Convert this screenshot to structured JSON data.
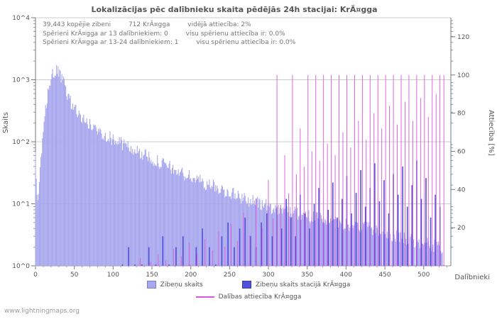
{
  "page": {
    "title": "Lokalizācijas pēc dalībnieku skaita pēdējās 24h stacijai: KrÃ¤gga",
    "watermark": "www.lightningmaps.org"
  },
  "annotations": {
    "line1": [
      "39,443 kopējie zibeni",
      "712 KrÃ¤gga",
      "vidējā attiecība: 2%"
    ],
    "line2": [
      "Spērieni KrÃ¤gga ar 13 dalībniekiem: 0",
      "visu spērienu attiecība ir: 0.0%"
    ],
    "line3": [
      "Spērieni KrÃ¤gga ar 13-24 dalībniekiem: 1",
      "visu spērienu attiecība ir: 0.0%"
    ]
  },
  "axes": {
    "left": {
      "label": "Skaits",
      "ticks": [
        "10^4",
        "10^3",
        "10^2",
        "10^1",
        "10^0"
      ]
    },
    "right": {
      "label": "Attiecība [%]",
      "ticks": [
        120,
        100,
        80,
        60,
        40,
        20
      ]
    },
    "x": {
      "label": "Dalībnieki",
      "ticks": [
        0,
        50,
        100,
        150,
        200,
        250,
        300,
        350,
        400,
        450,
        500
      ]
    }
  },
  "legend": {
    "items": [
      {
        "label": "Zibeņu skaits",
        "color": "#a8a8ee",
        "marker": "box"
      },
      {
        "label": "Zibeņu skaits stacijā KrÃ¤gga",
        "color": "#5050d8",
        "marker": "box"
      },
      {
        "label": "Dalības attiecība KrÃ¤gga",
        "color": "#dd55dd",
        "marker": "line"
      }
    ]
  },
  "chart_data": {
    "type": "bar",
    "title": "Lokalizācijas pēc dalībnieku skaita pēdējās 24h stacijai: KrÃ¤gga",
    "xlabel": "Dalībnieki",
    "ylabel_left": "Skaits",
    "ylabel_right": "Attiecība [%]",
    "x_max": 535,
    "left_scale": "log10",
    "left_range": [
      1,
      10000
    ],
    "right_max": 130,
    "right_range": [
      0,
      130
    ],
    "grid": "horizontal-decades",
    "legend_position": "bottom",
    "stats": {
      "total_strikes": "39,443",
      "station_strikes": "712",
      "average_ratio_pct": 2
    },
    "series": [
      {
        "name": "Zibeņu skaits",
        "type": "bar",
        "axis": "left",
        "color": "#a8a8ee",
        "x_end": 524,
        "profile": [
          [
            0,
            70
          ],
          [
            1,
            20
          ],
          [
            3,
            10
          ],
          [
            5,
            25
          ],
          [
            7,
            45
          ],
          [
            9,
            90
          ],
          [
            11,
            180
          ],
          [
            13,
            320
          ],
          [
            15,
            520
          ],
          [
            17,
            750
          ],
          [
            19,
            950
          ],
          [
            21,
            1120
          ],
          [
            24,
            1280
          ],
          [
            27,
            1350
          ],
          [
            30,
            1280
          ],
          [
            33,
            1080
          ],
          [
            36,
            880
          ],
          [
            39,
            700
          ],
          [
            42,
            560
          ],
          [
            45,
            450
          ],
          [
            48,
            380
          ],
          [
            52,
            320
          ],
          [
            56,
            275
          ],
          [
            60,
            240
          ],
          [
            65,
            210
          ],
          [
            70,
            185
          ],
          [
            75,
            168
          ],
          [
            80,
            152
          ],
          [
            85,
            140
          ],
          [
            90,
            130
          ],
          [
            95,
            120
          ],
          [
            100,
            110
          ],
          [
            110,
            95
          ],
          [
            120,
            82
          ],
          [
            130,
            71
          ],
          [
            140,
            61
          ],
          [
            150,
            53
          ],
          [
            160,
            46
          ],
          [
            170,
            40
          ],
          [
            180,
            35
          ],
          [
            190,
            30
          ],
          [
            200,
            27
          ],
          [
            210,
            24
          ],
          [
            220,
            21
          ],
          [
            230,
            19
          ],
          [
            240,
            17
          ],
          [
            250,
            15
          ],
          [
            260,
            13.5
          ],
          [
            270,
            12
          ],
          [
            280,
            11
          ],
          [
            290,
            10
          ],
          [
            300,
            9
          ],
          [
            310,
            8.5
          ],
          [
            320,
            8
          ],
          [
            330,
            7.4
          ],
          [
            340,
            6.9
          ],
          [
            350,
            6.4
          ],
          [
            360,
            6
          ],
          [
            370,
            5.5
          ],
          [
            380,
            5.2
          ],
          [
            390,
            5
          ],
          [
            400,
            4.7
          ],
          [
            410,
            4.4
          ],
          [
            420,
            4.1
          ],
          [
            430,
            3.9
          ],
          [
            440,
            3.6
          ],
          [
            450,
            3.4
          ],
          [
            460,
            3.1
          ],
          [
            470,
            2.9
          ],
          [
            480,
            2.7
          ],
          [
            490,
            2.5
          ],
          [
            500,
            2.3
          ],
          [
            510,
            2.1
          ],
          [
            520,
            2
          ],
          [
            524,
            1.9
          ]
        ]
      },
      {
        "name": "Zibeņu skaits stacijā KrÃ¤gga",
        "type": "bar",
        "axis": "left",
        "color": "#5050d8",
        "points": [
          [
            112,
            1
          ],
          [
            120,
            2
          ],
          [
            128,
            1
          ],
          [
            137,
            1
          ],
          [
            146,
            2
          ],
          [
            155,
            1
          ],
          [
            164,
            3
          ],
          [
            172,
            1
          ],
          [
            181,
            2
          ],
          [
            190,
            3
          ],
          [
            198,
            1
          ],
          [
            207,
            2
          ],
          [
            215,
            4
          ],
          [
            224,
            2
          ],
          [
            232,
            1
          ],
          [
            240,
            3
          ],
          [
            248,
            5
          ],
          [
            256,
            2
          ],
          [
            263,
            4
          ],
          [
            270,
            6
          ],
          [
            277,
            3
          ],
          [
            284,
            2
          ],
          [
            291,
            5
          ],
          [
            298,
            7
          ],
          [
            305,
            3
          ],
          [
            311,
            9
          ],
          [
            317,
            4
          ],
          [
            323,
            12
          ],
          [
            329,
            6
          ],
          [
            335,
            3
          ],
          [
            341,
            14
          ],
          [
            347,
            7
          ],
          [
            353,
            4
          ],
          [
            359,
            10
          ],
          [
            365,
            18
          ],
          [
            371,
            5
          ],
          [
            377,
            8
          ],
          [
            383,
            22
          ],
          [
            389,
            6
          ],
          [
            395,
            12
          ],
          [
            401,
            28
          ],
          [
            407,
            7
          ],
          [
            413,
            15
          ],
          [
            419,
            35
          ],
          [
            425,
            9
          ],
          [
            431,
            18
          ],
          [
            437,
            45
          ],
          [
            443,
            11
          ],
          [
            449,
            24
          ],
          [
            455,
            7
          ],
          [
            461,
            30
          ],
          [
            467,
            14
          ],
          [
            473,
            40
          ],
          [
            479,
            9
          ],
          [
            485,
            20
          ],
          [
            491,
            50
          ],
          [
            497,
            12
          ],
          [
            503,
            26
          ],
          [
            509,
            6
          ],
          [
            515,
            14
          ],
          [
            521,
            9
          ]
        ]
      },
      {
        "name": "Dalības attiecība KrÃ¤gga",
        "type": "line",
        "axis": "right",
        "color": "#dd55dd",
        "points_pct": [
          [
            135,
            4
          ],
          [
            148,
            2
          ],
          [
            158,
            6
          ],
          [
            168,
            3
          ],
          [
            178,
            9
          ],
          [
            188,
            5
          ],
          [
            198,
            12
          ],
          [
            208,
            6
          ],
          [
            218,
            14
          ],
          [
            228,
            8
          ],
          [
            236,
            18
          ],
          [
            244,
            10
          ],
          [
            252,
            22
          ],
          [
            260,
            13
          ],
          [
            268,
            28
          ],
          [
            276,
            16
          ],
          [
            284,
            35
          ],
          [
            292,
            20
          ],
          [
            300,
            45
          ],
          [
            306,
            25
          ],
          [
            311,
            100
          ],
          [
            316,
            32
          ],
          [
            321,
            58
          ],
          [
            326,
            38
          ],
          [
            331,
            100
          ],
          [
            336,
            48
          ],
          [
            341,
            72
          ],
          [
            346,
            52
          ],
          [
            351,
            100
          ],
          [
            356,
            60
          ],
          [
            361,
            100
          ],
          [
            366,
            55
          ],
          [
            371,
            100
          ],
          [
            376,
            64
          ],
          [
            381,
            100
          ],
          [
            386,
            58
          ],
          [
            391,
            100
          ],
          [
            396,
            70
          ],
          [
            401,
            100
          ],
          [
            406,
            62
          ],
          [
            411,
            100
          ],
          [
            416,
            76
          ],
          [
            421,
            100
          ],
          [
            426,
            66
          ],
          [
            431,
            100
          ],
          [
            436,
            80
          ],
          [
            441,
            100
          ],
          [
            446,
            72
          ],
          [
            451,
            100
          ],
          [
            456,
            84
          ],
          [
            461,
            100
          ],
          [
            466,
            74
          ],
          [
            471,
            100
          ],
          [
            476,
            86
          ],
          [
            481,
            100
          ],
          [
            486,
            76
          ],
          [
            491,
            100
          ],
          [
            496,
            88
          ],
          [
            501,
            100
          ],
          [
            506,
            78
          ],
          [
            511,
            100
          ],
          [
            516,
            90
          ],
          [
            521,
            100
          ],
          [
            526,
            100
          ]
        ]
      }
    ]
  }
}
